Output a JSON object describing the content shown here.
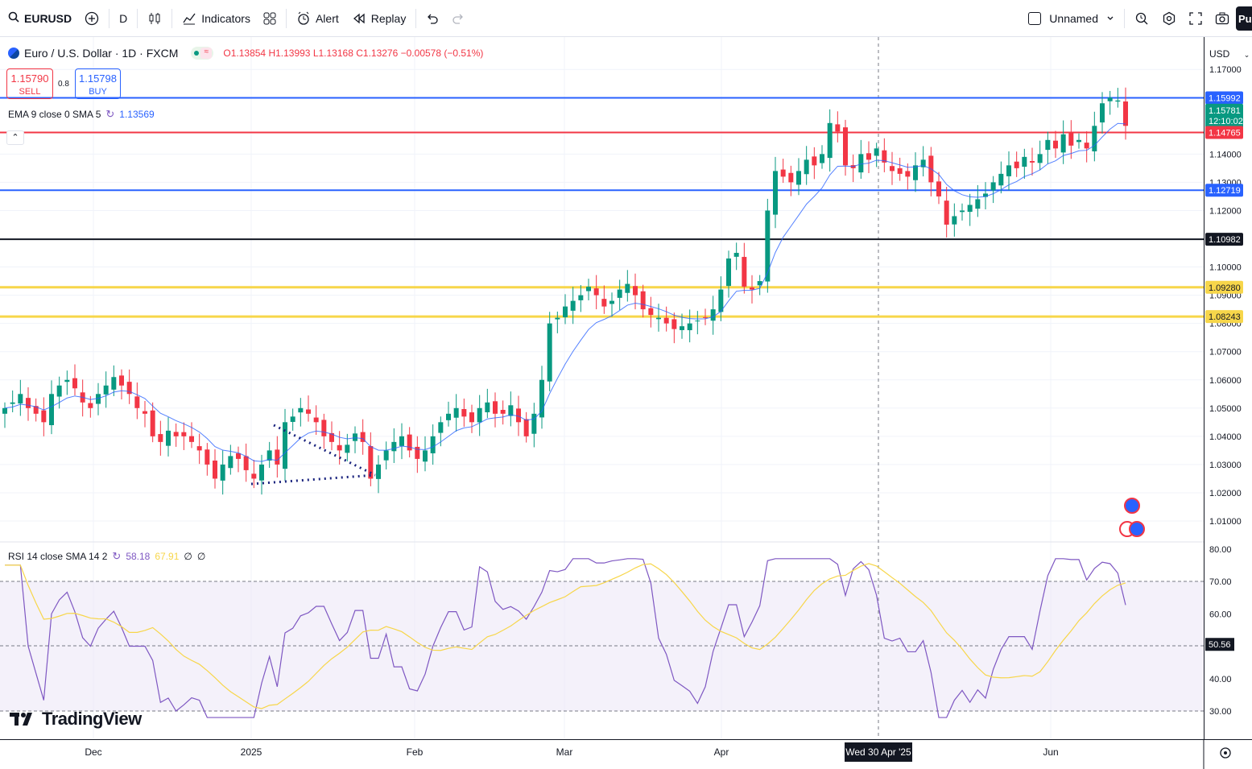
{
  "toolbar": {
    "symbol": "EURUSD",
    "interval": "D",
    "indicators_label": "Indicators",
    "alert_label": "Alert",
    "replay_label": "Replay",
    "layout_name": "Unnamed",
    "publish_label": "Pu"
  },
  "legend": {
    "title": "Euro / U.S. Dollar · 1D · FXCM",
    "open": "O1.13854",
    "high": "H1.13993",
    "low": "L1.13168",
    "close": "C1.13276",
    "change": "−0.00578 (−0.51%)"
  },
  "trade": {
    "sell_price": "1.15790",
    "sell_label": "SELL",
    "spread": "0.8",
    "buy_price": "1.15798",
    "buy_label": "BUY"
  },
  "indicator": {
    "name": "EMA 9 close 0 SMA 5",
    "value": "1.13569"
  },
  "rsi": {
    "name": "RSI 14 close SMA 14 2",
    "value": "58.18",
    "sma_value": "67.91",
    "extra1": "∅",
    "extra2": "∅",
    "current_label": "50.56"
  },
  "price_axis": {
    "currency": "USD",
    "ticks": [
      "1.17000",
      "1.14000",
      "1.13000",
      "1.12000",
      "1.10000",
      "1.09000",
      "1.08000",
      "1.07000",
      "1.06000",
      "1.05000",
      "1.04000",
      "1.03000",
      "1.02000",
      "1.01000"
    ],
    "rsi_ticks": [
      "80.00",
      "70.00",
      "60.00",
      "40.00",
      "30.00"
    ]
  },
  "price_labels": [
    {
      "text": "1.15992",
      "color": "#2962ff"
    },
    {
      "text": "1.15781",
      "color": "#089981",
      "sub": "12:10:02"
    },
    {
      "text": "1.14765",
      "color": "#f23645"
    },
    {
      "text": "1.12719",
      "color": "#2962ff"
    },
    {
      "text": "1.10982",
      "color": "#131722"
    },
    {
      "text": "1.09280",
      "color": "#f7d64a"
    },
    {
      "text": "1.08243",
      "color": "#f7d64a"
    }
  ],
  "time_axis": {
    "labels": [
      "Dec",
      "2025",
      "Feb",
      "Mar",
      "Apr",
      "Jun"
    ],
    "crosshair_label": "Wed 30 Apr '25"
  },
  "brand": "TradingView",
  "colors": {
    "up": "#089981",
    "down": "#f23645",
    "ema": "#2962ff",
    "rsi": "#7e57c2",
    "rsi_sma": "#f7d64a",
    "rsi_band": "#ede7f6"
  },
  "chart_data": {
    "type": "candlestick",
    "symbol": "EURUSD",
    "y_range": [
      1.005,
      1.175
    ],
    "levels": [
      1.15992,
      1.14765,
      1.12719,
      1.10982,
      1.0928,
      1.08243
    ],
    "close_path": [
      1.05,
      1.052,
      1.055,
      1.05,
      1.048,
      1.045,
      1.055,
      1.058,
      1.06,
      1.057,
      1.052,
      1.05,
      1.055,
      1.058,
      1.061,
      1.058,
      1.055,
      1.05,
      1.048,
      1.04,
      1.038,
      1.042,
      1.04,
      1.04,
      1.038,
      1.035,
      1.03,
      1.025,
      1.03,
      1.033,
      1.032,
      1.028,
      1.025,
      1.03,
      1.035,
      1.03,
      1.045,
      1.047,
      1.05,
      1.048,
      1.045,
      1.04,
      1.038,
      1.035,
      1.037,
      1.041,
      1.038,
      1.025,
      1.03,
      1.035,
      1.038,
      1.04,
      1.035,
      1.032,
      1.035,
      1.04,
      1.045,
      1.048,
      1.05,
      1.047,
      1.045,
      1.05,
      1.052,
      1.048,
      1.048,
      1.051,
      1.045,
      1.04,
      1.048,
      1.06,
      1.08,
      1.082,
      1.086,
      1.088,
      1.09,
      1.093,
      1.09,
      1.086,
      1.088,
      1.092,
      1.094,
      1.09,
      1.085,
      1.083,
      1.082,
      1.08,
      1.078,
      1.079,
      1.08,
      1.081,
      1.082,
      1.085,
      1.092,
      1.103,
      1.105,
      1.093,
      1.092,
      1.095,
      1.12,
      1.134,
      1.132,
      1.13,
      1.134,
      1.138,
      1.136,
      1.14,
      1.151,
      1.148,
      1.136,
      1.135,
      1.14,
      1.138,
      1.142,
      1.137,
      1.134,
      1.133,
      1.132,
      1.136,
      1.138,
      1.13,
      1.125,
      1.115,
      1.118,
      1.12,
      1.122,
      1.124,
      1.126,
      1.13,
      1.133,
      1.136,
      1.135,
      1.139,
      1.137,
      1.14,
      1.145,
      1.142,
      1.147,
      1.143,
      1.145,
      1.142,
      1.15,
      1.158,
      1.16,
      1.159,
      1.15
    ]
  }
}
